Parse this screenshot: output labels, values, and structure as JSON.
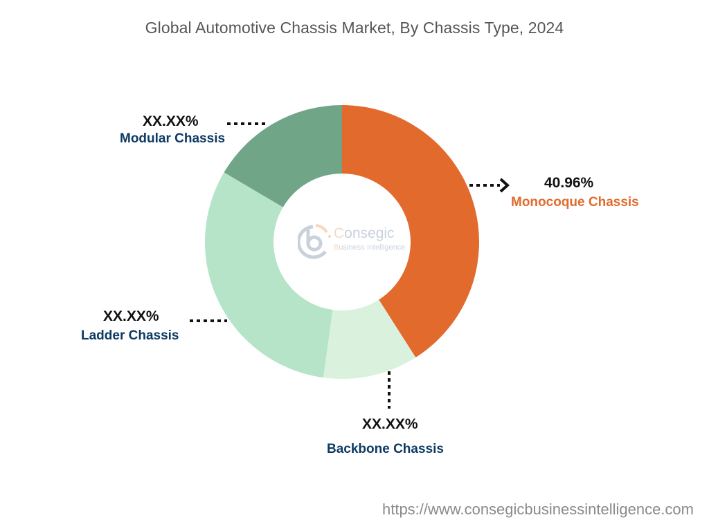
{
  "chart_data": {
    "type": "pie",
    "subtype": "donut",
    "title": "Global Automotive Chassis Market, By Chassis Type, 2024",
    "categories": [
      "Monocoque Chassis",
      "Backbone Chassis",
      "Ladder Chassis",
      "Modular Chassis"
    ],
    "values": [
      40.96,
      11.2,
      31.3,
      16.5
    ],
    "value_labels": [
      "40.96%",
      "XX.XX%",
      "XX.XX%",
      "XX.XX%"
    ],
    "colors": [
      "#e26a2c",
      "#daf2dd",
      "#b6e4c8",
      "#70a587"
    ],
    "start_angle_deg": 0,
    "direction": "clockwise",
    "legend": "none (callout labels)",
    "source_url": "https://www.consegicbusinessintelligence.com"
  },
  "title": "Global Automotive Chassis Market, By Chassis Type, 2024",
  "labels": {
    "monocoque": {
      "pct": "40.96%",
      "name": "Monocoque Chassis"
    },
    "backbone": {
      "pct": "XX.XX%",
      "name": "Backbone Chassis"
    },
    "ladder": {
      "pct": "XX.XX%",
      "name": "Ladder Chassis"
    },
    "modular": {
      "pct": "XX.XX%",
      "name": "Modular Chassis"
    }
  },
  "watermark": {
    "brand_initial": "C",
    "brand_rest": "onsegic",
    "sub_b": "B",
    "sub_usiness": "usiness ",
    "sub_i": "I",
    "sub_ntelligence": "ntelligence"
  },
  "footer": {
    "url": "https://www.consegicbusinessintelligence.com"
  }
}
